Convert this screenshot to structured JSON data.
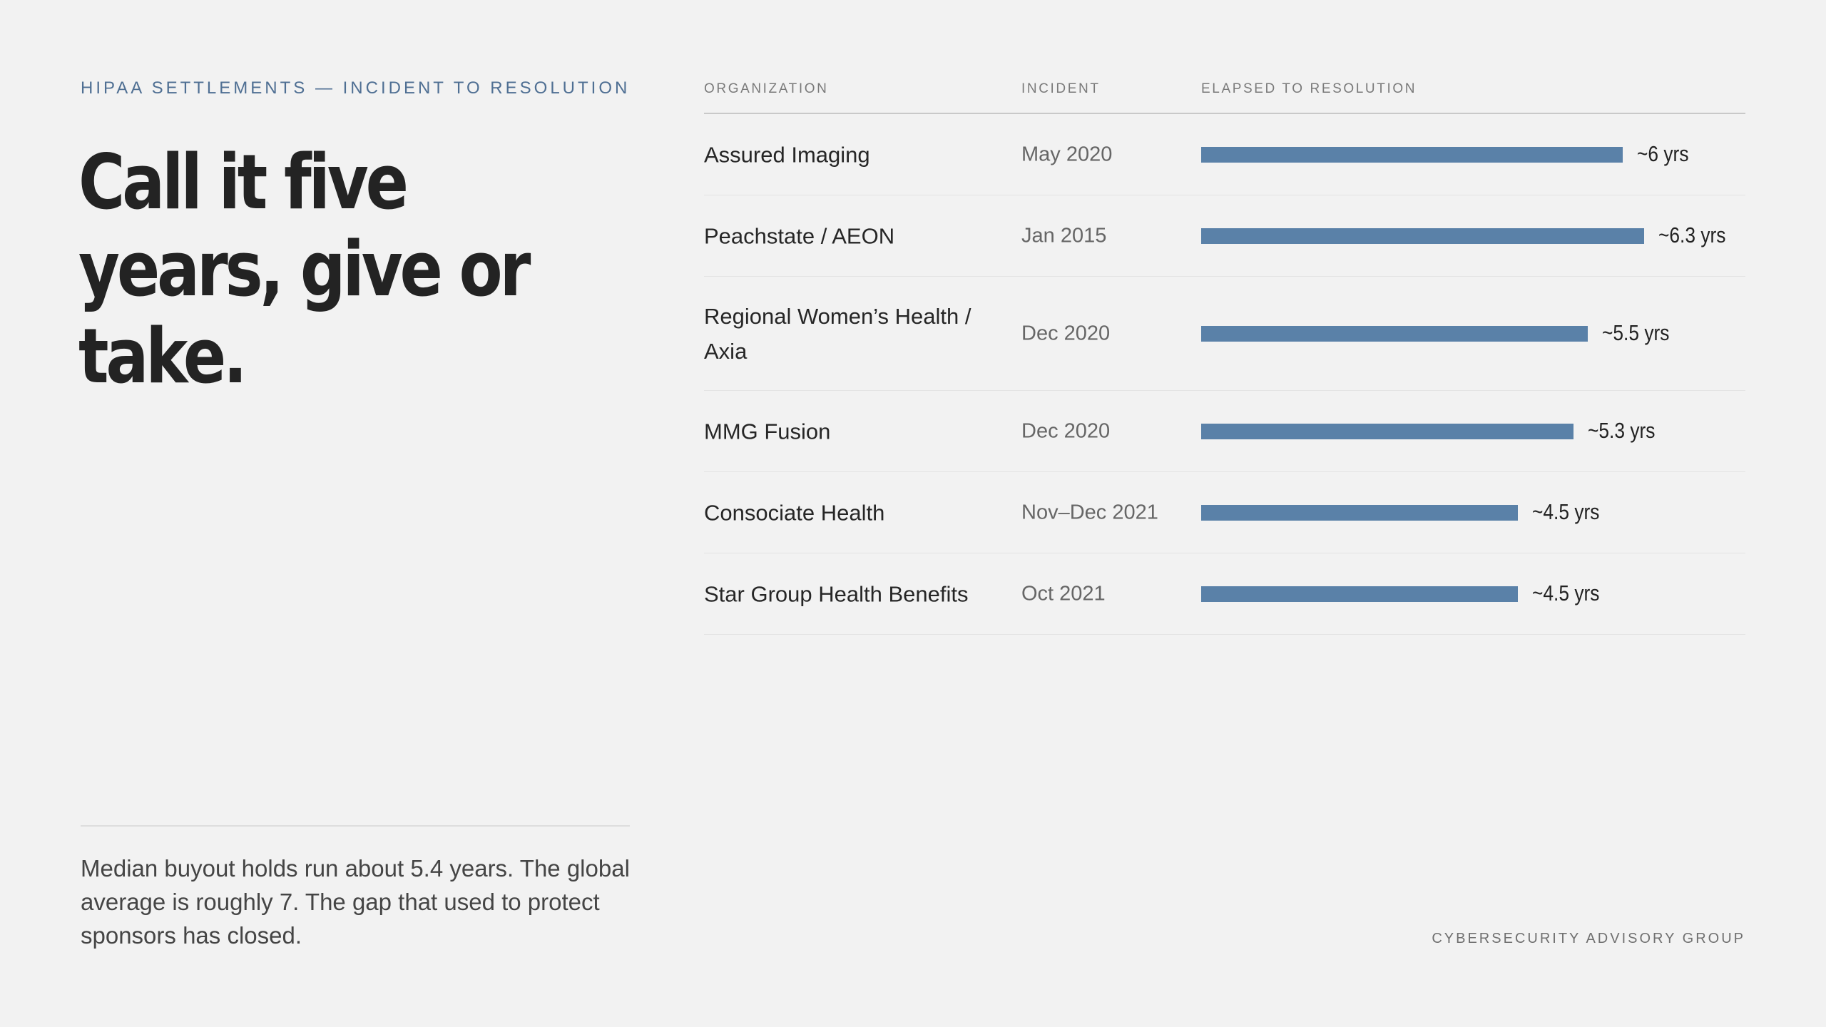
{
  "eyebrow": "HIPAA SETTLEMENTS — INCIDENT TO RESOLUTION",
  "headline": "Call it five years, give or take.",
  "footnote": "Median buyout holds run about 5.4 years. The global average is roughly 7. The gap that used to protect sponsors has closed.",
  "brand": "CYBERSECURITY ADVISORY GROUP",
  "colors": {
    "bar": "#5a81a8",
    "accent": "#4f6f93",
    "background": "#f2f2f2"
  },
  "chart_data": {
    "type": "bar",
    "orientation": "horizontal",
    "columns": [
      "ORGANIZATION",
      "INCIDENT",
      "ELAPSED TO RESOLUTION"
    ],
    "categories": [
      "Assured Imaging",
      "Peachstate / AEON",
      "Regional Women’s Health / Axia",
      "MMG Fusion",
      "Consociate Health",
      "Star Group Health Benefits"
    ],
    "incidents": [
      "May 2020",
      "Jan 2015",
      "Dec 2020",
      "Dec 2020",
      "Nov–Dec 2021",
      "Oct 2021"
    ],
    "values": [
      6,
      6.3,
      5.5,
      5.3,
      4.5,
      4.5
    ],
    "value_labels": [
      "~6 yrs",
      "~6.3 yrs",
      "~5.5 yrs",
      "~5.3 yrs",
      "~4.5 yrs",
      "~4.5 yrs"
    ],
    "unit": "yrs",
    "xlim": [
      0,
      6.3
    ],
    "grid": false,
    "legend": "none"
  }
}
